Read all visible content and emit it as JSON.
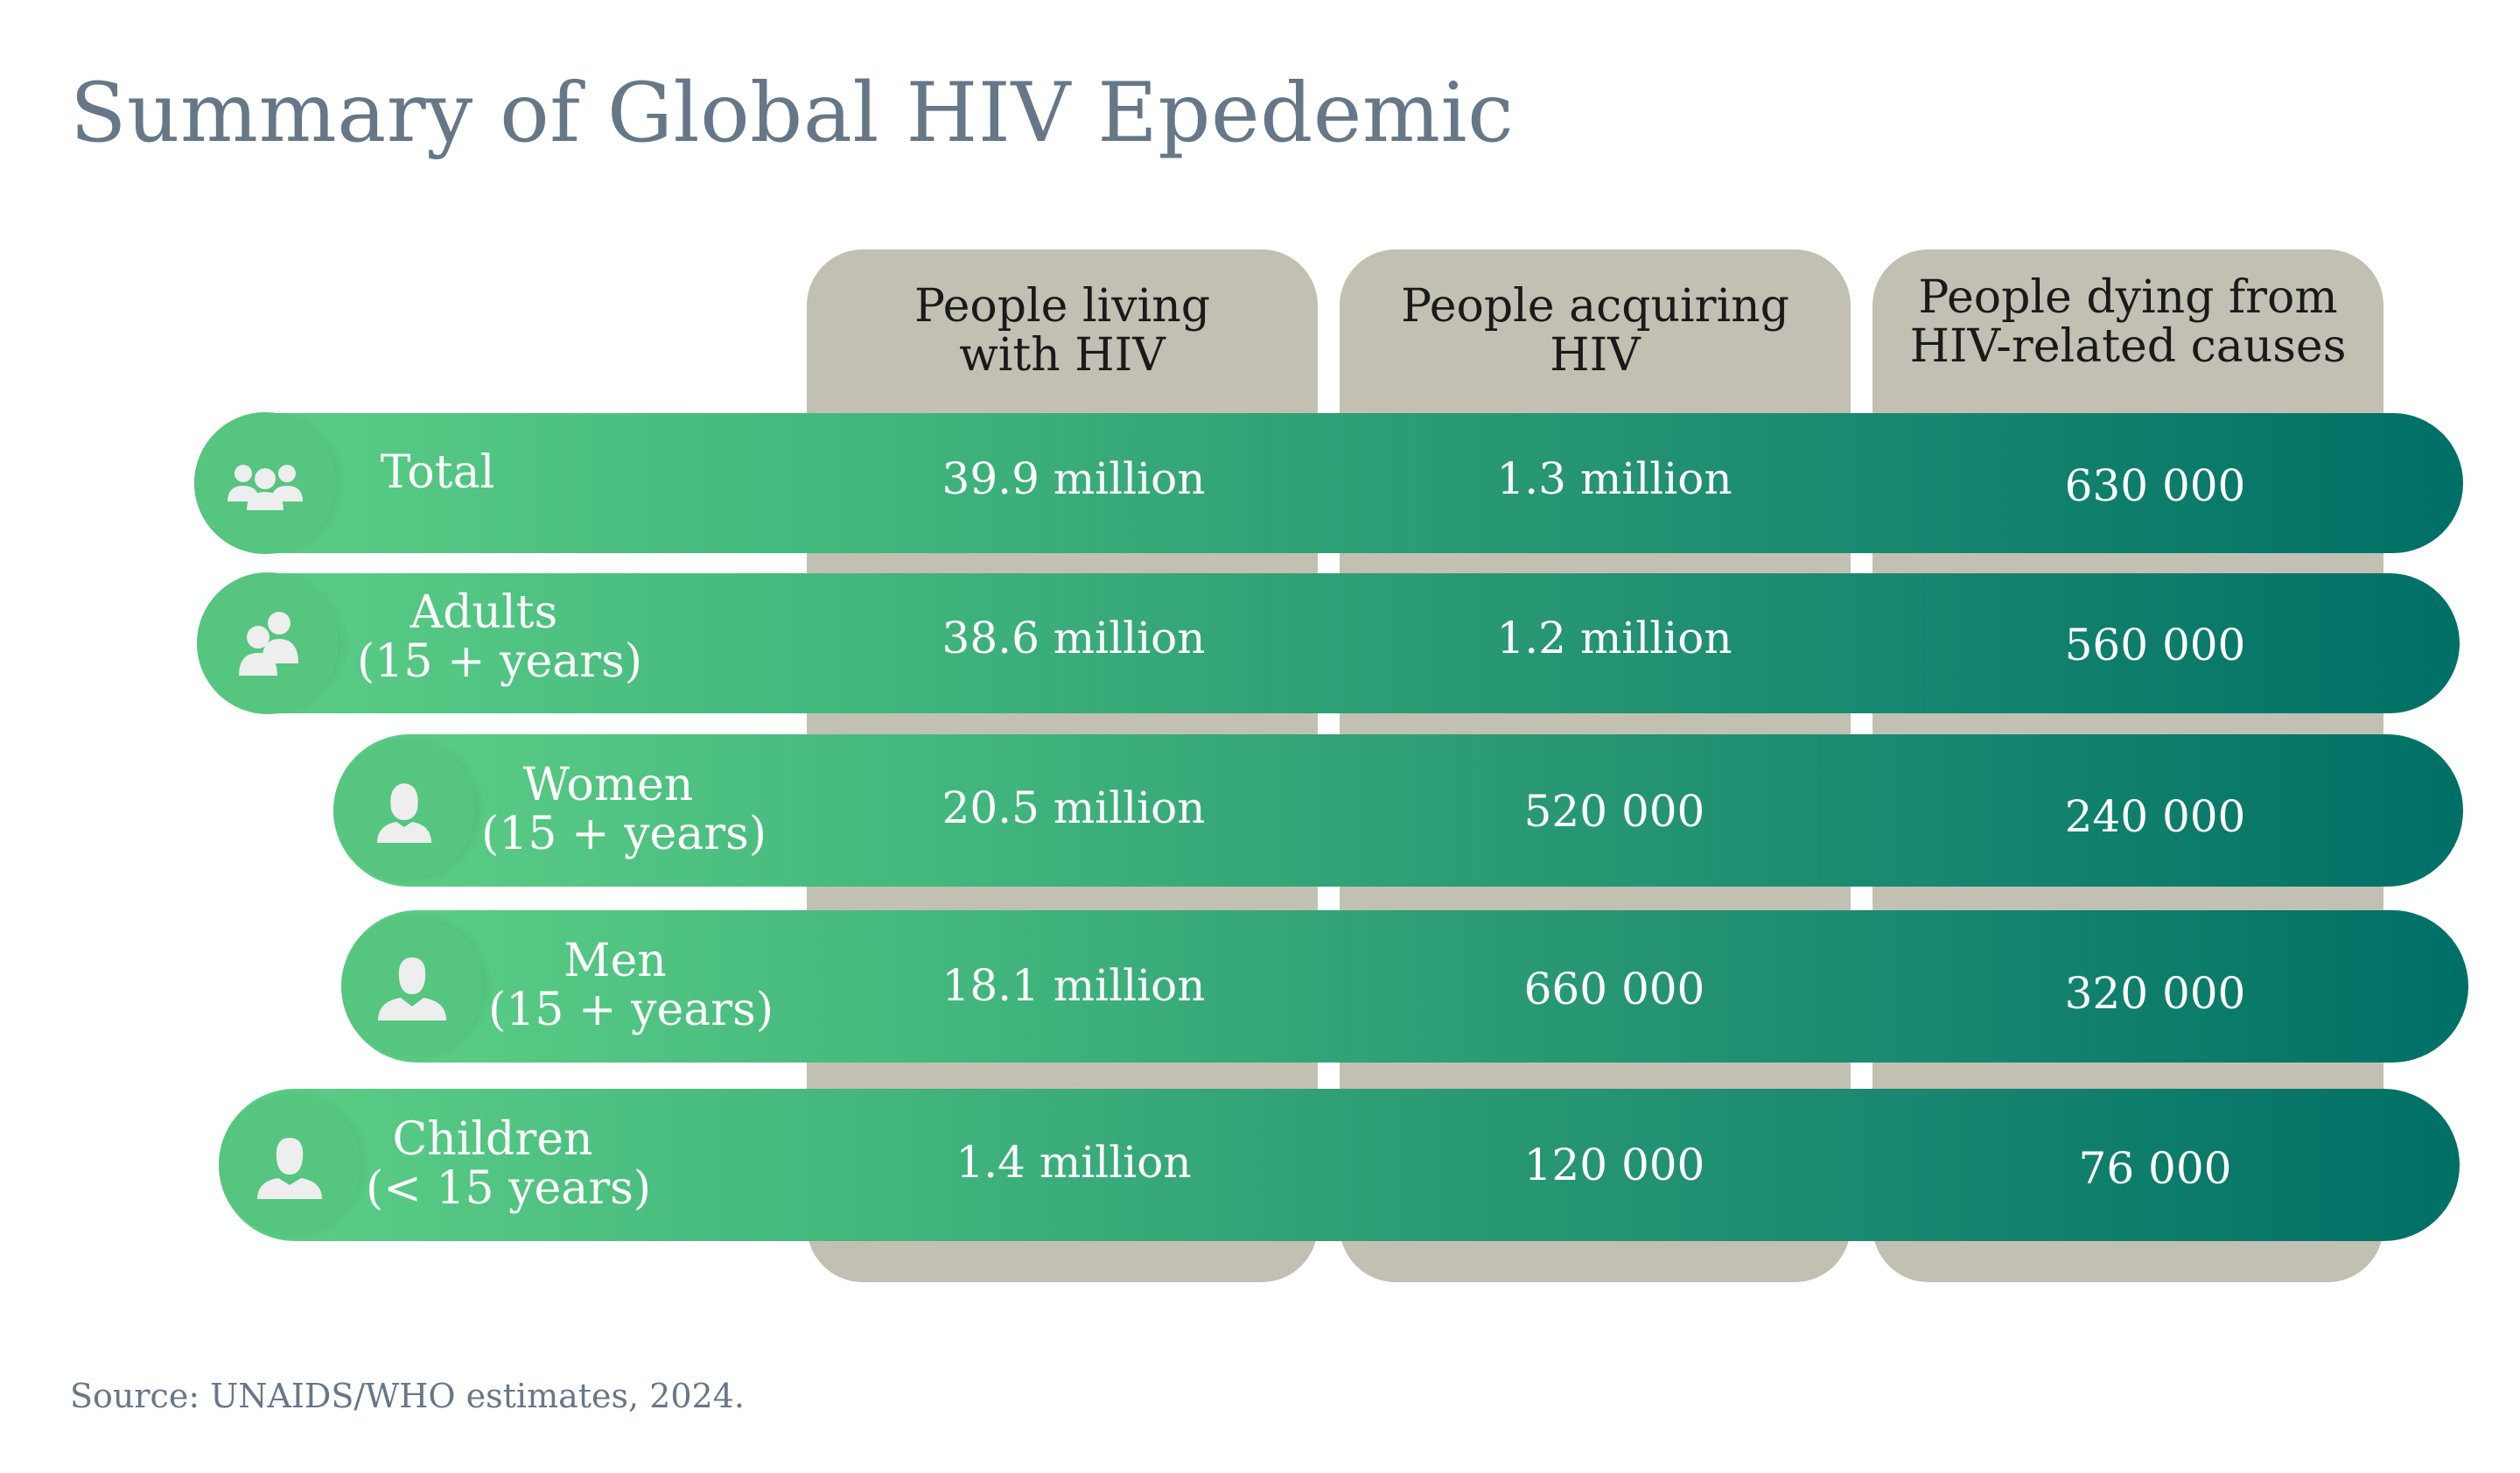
{
  "title": "Summary of Global HIV Epedemic",
  "source": "Source: UNAIDS/WHO estimates, 2024.",
  "colors": {
    "title": "#667788",
    "column_bg": "#c2c0b3",
    "bar_start": "#5dcf86",
    "bar_end": "#006f66"
  },
  "chart_data": {
    "type": "table",
    "columns": [
      {
        "line1": "People living",
        "line2": "with HIV"
      },
      {
        "line1": "People acquiring",
        "line2": "HIV"
      },
      {
        "line1": "People dying from",
        "line2": "HIV-related causes"
      }
    ],
    "rows": [
      {
        "icon": "group-icon",
        "label1": "Total",
        "label2": "",
        "values": [
          "39.9 million",
          "1.3 million",
          "630 000"
        ]
      },
      {
        "icon": "adults-icon",
        "label1": "Adults",
        "label2": "(15 + years)",
        "values": [
          "38.6 million",
          "1.2 million",
          "560 000"
        ]
      },
      {
        "icon": "woman-icon",
        "label1": "Women",
        "label2": "(15 + years)",
        "values": [
          "20.5 million",
          "520 000",
          "240 000"
        ]
      },
      {
        "icon": "man-icon",
        "label1": "Men",
        "label2": "(15 + years)",
        "values": [
          "18.1 million",
          "660 000",
          "320 000"
        ]
      },
      {
        "icon": "child-icon",
        "label1": "Children",
        "label2": "(< 15 years)",
        "values": [
          "1.4 million",
          "120 000",
          "76 000"
        ]
      }
    ]
  }
}
